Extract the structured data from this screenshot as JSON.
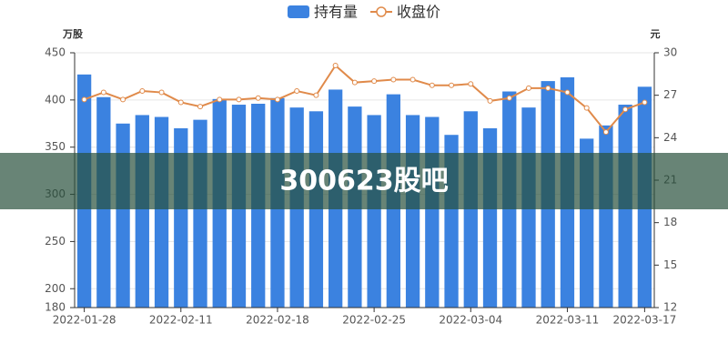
{
  "chart_data": {
    "type": "bar-line",
    "y_label": "万股",
    "y2_label": "元",
    "categories": [
      "2022-01-28",
      null,
      null,
      null,
      null,
      "2022-02-11",
      null,
      null,
      null,
      null,
      "2022-02-18",
      null,
      null,
      null,
      null,
      "2022-02-25",
      null,
      null,
      null,
      null,
      "2022-03-04",
      null,
      null,
      null,
      null,
      "2022-03-11",
      null,
      null,
      null,
      "2022-03-17"
    ],
    "series": [
      {
        "name": "持有量",
        "type": "bar",
        "color": "#3b82e0",
        "values": [
          427,
          403,
          375,
          384,
          382,
          370,
          379,
          401,
          395,
          396,
          402,
          392,
          388,
          411,
          393,
          384,
          406,
          384,
          382,
          363,
          388,
          370,
          409,
          392,
          420,
          424,
          359,
          373,
          395,
          414
        ]
      },
      {
        "name": "收盘价",
        "type": "line",
        "axis": "y2",
        "color": "#e08a4a",
        "values": [
          26.7,
          27.2,
          26.7,
          27.3,
          27.2,
          26.5,
          26.2,
          26.7,
          26.7,
          26.8,
          26.7,
          27.3,
          27.0,
          29.1,
          27.9,
          28.0,
          28.1,
          28.1,
          27.7,
          27.7,
          27.8,
          26.6,
          26.8,
          27.5,
          27.5,
          27.2,
          26.1,
          24.4,
          26.0,
          26.5
        ]
      }
    ],
    "ylim": [
      180,
      450
    ],
    "yticks": [
      180,
      200,
      250,
      300,
      350,
      400,
      450
    ],
    "y2lim": [
      12,
      30
    ],
    "y2ticks": [
      12,
      15,
      18,
      21,
      24,
      27,
      30
    ],
    "grid": true,
    "legend": "top"
  },
  "banner": {
    "text": "300623股吧"
  }
}
